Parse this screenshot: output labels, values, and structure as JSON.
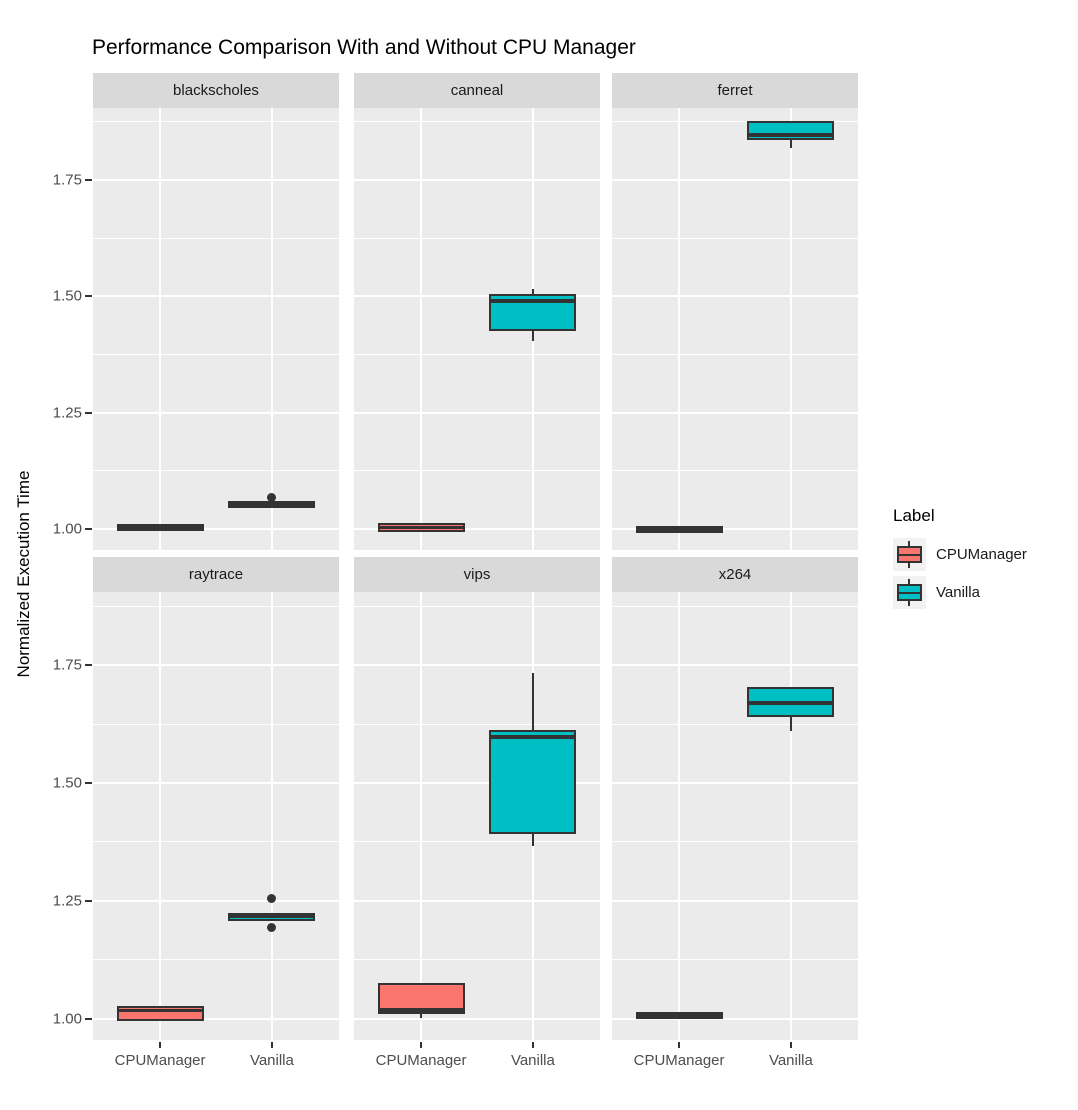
{
  "title": "Performance Comparison With and Without CPU Manager",
  "y_axis": {
    "label": "Normalized Execution Time",
    "tick_labels": [
      "1.00",
      "1.25",
      "1.50",
      "1.75"
    ],
    "tick_values": [
      1.0,
      1.25,
      1.5,
      1.75
    ]
  },
  "x_axis": {
    "categories": [
      "CPUManager",
      "Vanilla"
    ]
  },
  "legend": {
    "title": "Label",
    "entries": [
      {
        "label": "CPUManager",
        "color": "#F8766D"
      },
      {
        "label": "Vanilla",
        "color": "#00BFC4"
      }
    ]
  },
  "colors": {
    "cpumanager": "#F8766D",
    "vanilla": "#00BFC4",
    "box_stroke": "#333333",
    "panel_bg": "#EBEBEB",
    "strip_bg": "#D9D9D9",
    "gridline": "#FFFFFF",
    "axis_text": "#4D4D4D",
    "legend_key_bg": "#F2F2F2"
  },
  "chart_data": {
    "type": "boxplot",
    "title": "Performance Comparison With and Without CPU Manager",
    "ylabel": "Normalized Execution Time",
    "xlabel": "",
    "ylim": [
      0.955,
      1.905
    ],
    "grid": {
      "major": [
        1.0,
        1.25,
        1.5,
        1.75
      ],
      "minor": [
        1.125,
        1.375,
        1.625,
        1.875
      ],
      "vertical_at_categories": true
    },
    "legend_position": "right",
    "categories": [
      "CPUManager",
      "Vanilla"
    ],
    "facets": [
      {
        "name": "blackscholes",
        "row": 0,
        "col": 0,
        "boxes": [
          {
            "group": "CPUManager",
            "color": "#F8766D",
            "min": 1.0,
            "q1": 1.0,
            "median": 1.003,
            "q3": 1.006,
            "max": 1.006,
            "outliers": []
          },
          {
            "group": "Vanilla",
            "color": "#00BFC4",
            "min": 1.05,
            "q1": 1.05,
            "median": 1.053,
            "q3": 1.057,
            "max": 1.057,
            "outliers": [
              1.067
            ]
          }
        ]
      },
      {
        "name": "canneal",
        "row": 0,
        "col": 1,
        "boxes": [
          {
            "group": "CPUManager",
            "color": "#F8766D",
            "min": 0.998,
            "q1": 0.998,
            "median": 1.003,
            "q3": 1.008,
            "max": 1.008,
            "outliers": []
          },
          {
            "group": "Vanilla",
            "color": "#00BFC4",
            "min": 1.405,
            "q1": 1.43,
            "median": 1.49,
            "q3": 1.5,
            "max": 1.515,
            "outliers": []
          }
        ]
      },
      {
        "name": "ferret",
        "row": 0,
        "col": 2,
        "boxes": [
          {
            "group": "CPUManager",
            "color": "#F8766D",
            "min": 0.996,
            "q1": 0.996,
            "median": 1.0,
            "q3": 1.003,
            "max": 1.003,
            "outliers": []
          },
          {
            "group": "Vanilla",
            "color": "#00BFC4",
            "min": 1.82,
            "q1": 1.84,
            "median": 1.846,
            "q3": 1.872,
            "max": 1.872,
            "outliers": []
          }
        ]
      },
      {
        "name": "raytrace",
        "row": 1,
        "col": 0,
        "boxes": [
          {
            "group": "CPUManager",
            "color": "#F8766D",
            "min": 1.0,
            "q1": 1.0,
            "median": 1.018,
            "q3": 1.023,
            "max": 1.023,
            "outliers": []
          },
          {
            "group": "Vanilla",
            "color": "#00BFC4",
            "min": 1.212,
            "q1": 1.212,
            "median": 1.216,
            "q3": 1.22,
            "max": 1.22,
            "outliers": [
              1.256,
              1.193
            ]
          }
        ]
      },
      {
        "name": "vips",
        "row": 1,
        "col": 1,
        "boxes": [
          {
            "group": "CPUManager",
            "color": "#F8766D",
            "min": 1.002,
            "q1": 1.015,
            "median": 1.019,
            "q3": 1.072,
            "max": 1.072,
            "outliers": []
          },
          {
            "group": "Vanilla",
            "color": "#00BFC4",
            "min": 1.366,
            "q1": 1.396,
            "median": 1.598,
            "q3": 1.608,
            "max": 1.733,
            "outliers": []
          }
        ]
      },
      {
        "name": "x264",
        "row": 1,
        "col": 2,
        "boxes": [
          {
            "group": "CPUManager",
            "color": "#F8766D",
            "min": 1.004,
            "q1": 1.004,
            "median": 1.007,
            "q3": 1.01,
            "max": 1.01,
            "outliers": []
          },
          {
            "group": "Vanilla",
            "color": "#00BFC4",
            "min": 1.61,
            "q1": 1.645,
            "median": 1.67,
            "q3": 1.7,
            "max": 1.7,
            "outliers": []
          }
        ]
      }
    ]
  }
}
